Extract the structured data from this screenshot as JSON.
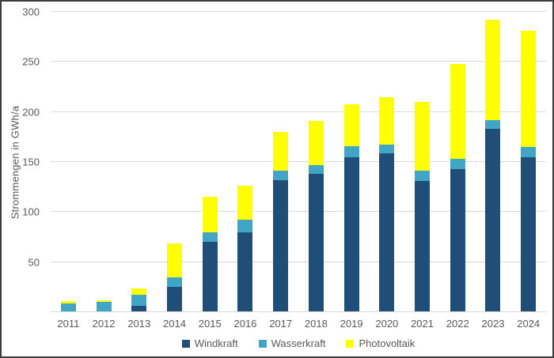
{
  "chart_data": {
    "type": "bar",
    "stacked": true,
    "title": "",
    "ylabel": "Strommengen in GWh/a",
    "xlabel": "",
    "ylim": [
      0,
      300
    ],
    "yticks": [
      50,
      100,
      150,
      200,
      250,
      300
    ],
    "grid": true,
    "legend_position": "bottom",
    "categories": [
      "2011",
      "2012",
      "2013",
      "2014",
      "2015",
      "2016",
      "2017",
      "2018",
      "2019",
      "2020",
      "2021",
      "2022",
      "2023",
      "2024"
    ],
    "series": [
      {
        "name": "Windkraft",
        "color": "#1F4E79",
        "values": [
          0,
          0,
          6,
          25,
          70,
          80,
          132,
          138,
          155,
          159,
          131,
          143,
          183,
          155
        ]
      },
      {
        "name": "Wasserkraft",
        "color": "#41A5C6",
        "values": [
          9,
          10,
          11,
          10,
          10,
          12,
          9,
          9,
          11,
          8,
          10,
          10,
          9,
          10
        ]
      },
      {
        "name": "Photovoltaik",
        "color": "#FFFF00",
        "values": [
          2,
          2,
          7,
          34,
          35,
          34,
          39,
          44,
          42,
          48,
          69,
          95,
          100,
          116
        ]
      }
    ],
    "totals": [
      11,
      12,
      24,
      69,
      115,
      126,
      180,
      191,
      208,
      215,
      210,
      248,
      292,
      281
    ]
  },
  "colors": {
    "gridline": "#D9D9D9",
    "axis_text": "#595959",
    "frame_border": "#3C3C3C",
    "background": "#FFFFFF"
  }
}
